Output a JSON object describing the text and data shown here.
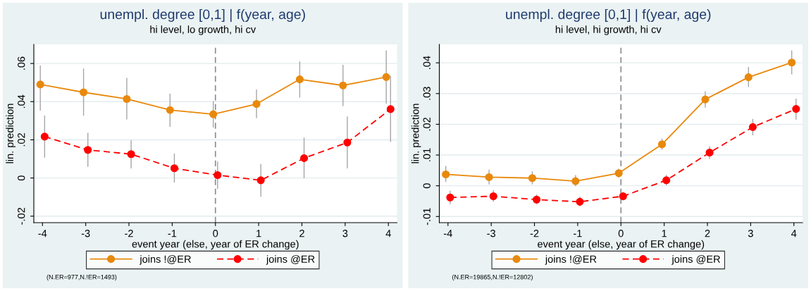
{
  "chart_data": [
    {
      "type": "line",
      "title": "unempl. degree [0,1] | f(year, age)",
      "subtitle": "hi level, lo growth, hi cv",
      "xlabel": "event year (else, year of ER change)",
      "ylabel": "lin. prediction",
      "xlim": [
        -4.2,
        4.2
      ],
      "xticks": [
        -4,
        -3,
        -2,
        -1,
        0,
        1,
        2,
        3,
        4
      ],
      "ylim": [
        -0.0234,
        0.07
      ],
      "yticks": [
        {
          "value": -0.02,
          "label": "-.02"
        },
        {
          "value": 0,
          "label": "0"
        },
        {
          "value": 0.02,
          "label": ".02"
        },
        {
          "value": 0.04,
          "label": ".04"
        },
        {
          "value": 0.06,
          "label": ".06"
        }
      ],
      "grid": "y",
      "legend": "bottom",
      "marker": "circle",
      "ref_lines": [
        {
          "axis": "x",
          "value": 0,
          "color": "#8c8c8c",
          "line_style": "dashed"
        }
      ],
      "annotations": [
        "(N.ER=977,N.!ER=1493)"
      ],
      "series": [
        {
          "name": "joins !@ER",
          "color": "#e8890c",
          "line_style": "solid",
          "x": [
            -4.05,
            -3.05,
            -2.05,
            -1.05,
            -0.05,
            0.95,
            1.95,
            2.95,
            3.95
          ],
          "values": [
            0.049,
            0.0449,
            0.0414,
            0.0356,
            0.0334,
            0.0388,
            0.0517,
            0.0485,
            0.0529
          ],
          "errors": [
            [
              0.0356,
              0.0587
            ],
            [
              0.033,
              0.0571
            ],
            [
              0.0309,
              0.0522
            ],
            [
              0.0271,
              0.0439
            ],
            [
              0.0267,
              0.04
            ],
            [
              0.0316,
              0.0461
            ],
            [
              0.0424,
              0.0608
            ],
            [
              0.038,
              0.059
            ],
            [
              0.0392,
              0.0666
            ]
          ]
        },
        {
          "name": "joins @ER",
          "color": "#ff0000",
          "line_style": "dashed",
          "x": [
            -3.95,
            -2.95,
            -1.95,
            -0.95,
            0.05,
            1.05,
            2.05,
            3.05,
            4.05
          ],
          "values": [
            0.0217,
            0.0147,
            0.0125,
            0.0051,
            0.0015,
            -0.0012,
            0.0104,
            0.0186,
            0.0361
          ],
          "errors": [
            [
              0.0109,
              0.0325
            ],
            [
              0.0061,
              0.0234
            ],
            [
              0.0053,
              0.0195
            ],
            [
              -0.0022,
              0.0125
            ],
            [
              -0.0055,
              0.0084
            ],
            [
              -0.0096,
              0.0071
            ],
            [
              0.0001,
              0.0209
            ],
            [
              0.0053,
              0.032
            ],
            [
              0.0191,
              0.0533
            ]
          ]
        }
      ]
    },
    {
      "type": "line",
      "title": "unempl. degree [0,1] | f(year, age)",
      "subtitle": "hi level, hi growth, hi cv",
      "xlabel": "event year (else, year of ER change)",
      "ylabel": "lin. prediction",
      "xlim": [
        -4.2,
        4.2
      ],
      "xticks": [
        -4,
        -3,
        -2,
        -1,
        0,
        1,
        2,
        3,
        4
      ],
      "ylim": [
        -0.012,
        0.046
      ],
      "yticks": [
        {
          "value": -0.01,
          "label": "-.01"
        },
        {
          "value": 0,
          "label": "0"
        },
        {
          "value": 0.01,
          "label": ".01"
        },
        {
          "value": 0.02,
          "label": ".02"
        },
        {
          "value": 0.03,
          "label": ".03"
        },
        {
          "value": 0.04,
          "label": ".04"
        }
      ],
      "grid": "y",
      "legend": "bottom",
      "marker": "circle",
      "ref_lines": [
        {
          "axis": "x",
          "value": 0,
          "color": "#8c8c8c",
          "line_style": "dashed"
        }
      ],
      "annotations": [
        "(N.ER=19865,N.!ER=12802)"
      ],
      "series": [
        {
          "name": "joins !@ER",
          "color": "#e8890c",
          "line_style": "solid",
          "x": [
            -4.05,
            -3.05,
            -2.05,
            -1.05,
            -0.05,
            0.95,
            1.95,
            2.95,
            3.95
          ],
          "values": [
            0.0037,
            0.0028,
            0.0025,
            0.0015,
            0.0041,
            0.0135,
            0.0281,
            0.0353,
            0.0401
          ],
          "errors": [
            [
              0.0014,
              0.0063
            ],
            [
              0.0006,
              0.0051
            ],
            [
              0.0006,
              0.0045
            ],
            [
              0.0,
              0.0033
            ],
            [
              0.0028,
              0.0054
            ],
            [
              0.0119,
              0.0152
            ],
            [
              0.0256,
              0.0306
            ],
            [
              0.0323,
              0.0385
            ],
            [
              0.0364,
              0.0439
            ]
          ]
        },
        {
          "name": "joins @ER",
          "color": "#ff0000",
          "line_style": "dashed",
          "x": [
            -3.95,
            -2.95,
            -1.95,
            -0.95,
            0.05,
            1.05,
            2.05,
            3.05,
            4.05
          ],
          "values": [
            -0.0038,
            -0.0034,
            -0.0045,
            -0.0052,
            -0.0034,
            0.0018,
            0.0108,
            0.0191,
            0.025
          ],
          "errors": [
            [
              -0.0058,
              -0.0018
            ],
            [
              -0.005,
              -0.0016
            ],
            [
              -0.0059,
              -0.003
            ],
            [
              -0.0065,
              -0.0037
            ],
            [
              -0.0046,
              -0.0022
            ],
            [
              0.0003,
              0.0034
            ],
            [
              0.0089,
              0.0127
            ],
            [
              0.0166,
              0.0216
            ],
            [
              0.0217,
              0.0282
            ]
          ]
        }
      ]
    }
  ]
}
